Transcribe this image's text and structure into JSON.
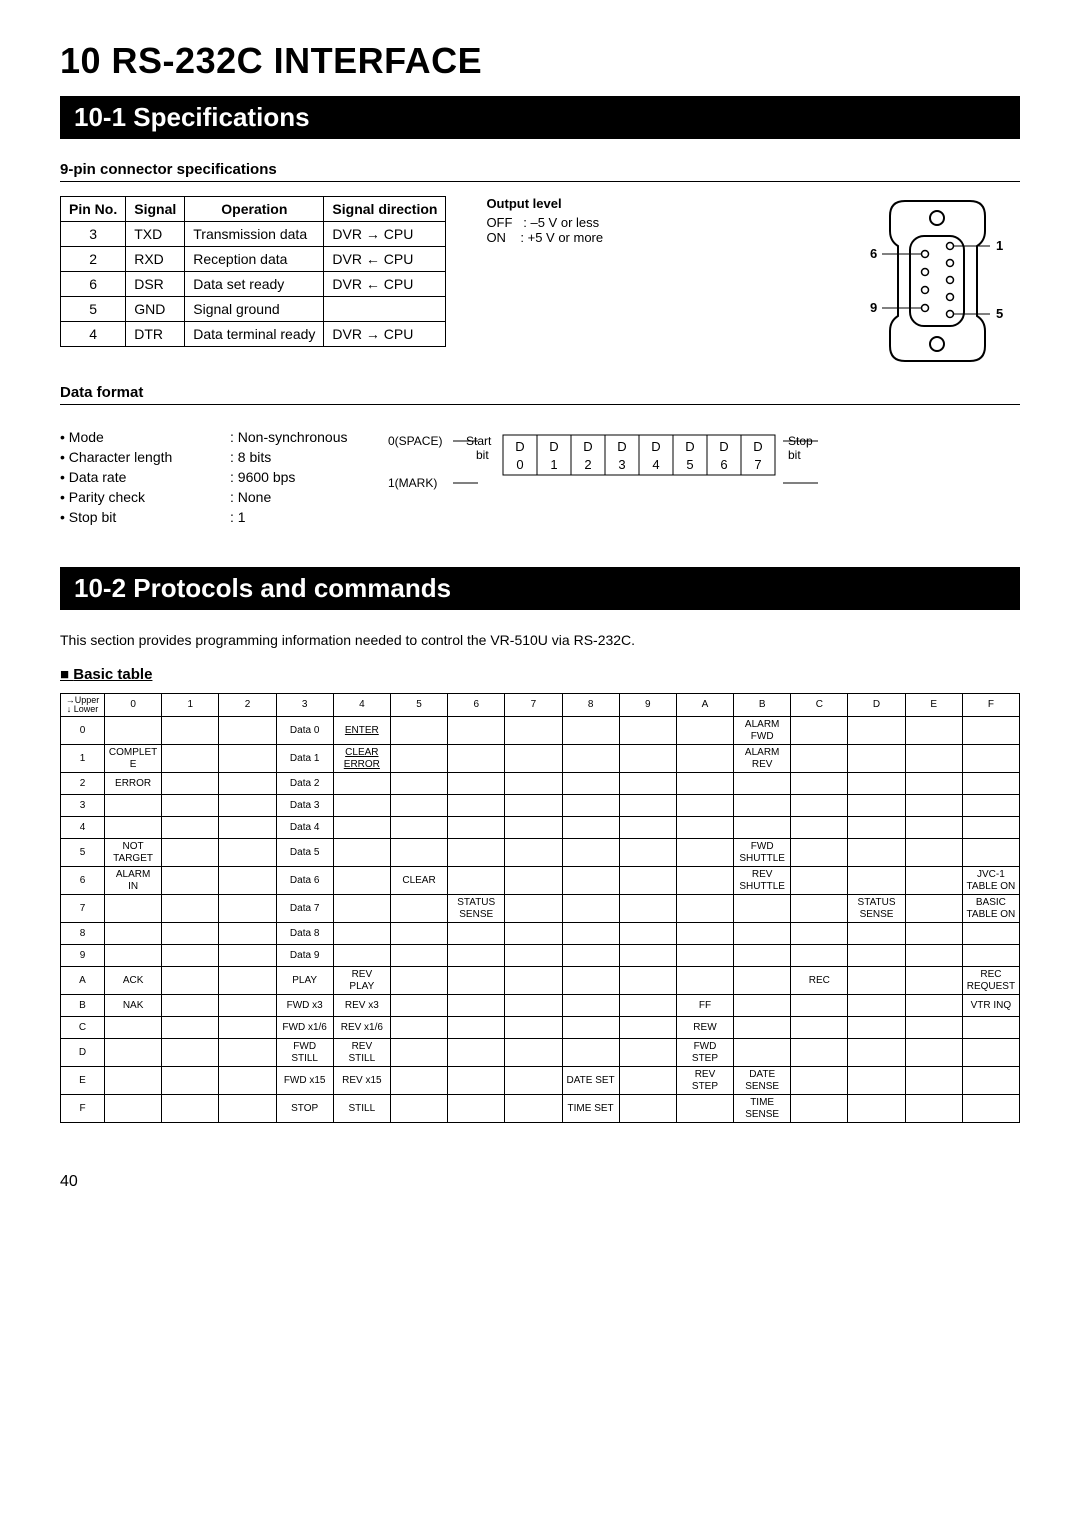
{
  "title": "10 RS-232C INTERFACE",
  "section1": {
    "bar": "10-1 Specifications"
  },
  "pinhdr": "9-pin connector specifications",
  "pinTable": {
    "headers": [
      "Pin No.",
      "Signal",
      "Operation",
      "Signal direction"
    ],
    "rows": [
      {
        "no": "3",
        "sig": "TXD",
        "op": "Transmission data",
        "dir": "DVR → CPU"
      },
      {
        "no": "2",
        "sig": "RXD",
        "op": "Reception data",
        "dir": "DVR ← CPU"
      },
      {
        "no": "6",
        "sig": "DSR",
        "op": "Data set ready",
        "dir": "DVR ← CPU"
      },
      {
        "no": "5",
        "sig": "GND",
        "op": "Signal ground",
        "dir": ""
      },
      {
        "no": "4",
        "sig": "DTR",
        "op": "Data terminal ready",
        "dir": "DVR → CPU"
      }
    ]
  },
  "output": {
    "title": "Output level",
    "off": "OFF   : –5 V or less",
    "on": "ON    : +5 V or more"
  },
  "connector": {
    "labels": {
      "p1": "1",
      "p5": "5",
      "p6": "6",
      "p9": "9"
    }
  },
  "datafmt_hdr": "Data format",
  "datafmt": [
    {
      "l": "• Mode",
      "v": "Non-synchronous"
    },
    {
      "l": "• Character length",
      "v": "8 bits"
    },
    {
      "l": "• Data rate",
      "v": "9600 bps"
    },
    {
      "l": "• Parity check",
      "v": "None"
    },
    {
      "l": "• Stop bit",
      "v": "1"
    }
  ],
  "timing": {
    "space": "0(SPACE)",
    "mark": "1(MARK)",
    "start": "Start\nbit",
    "stop": "Stop\nbit",
    "bits": [
      "D\n0",
      "D\n1",
      "D\n2",
      "D\n3",
      "D\n4",
      "D\n5",
      "D\n6",
      "D\n7"
    ]
  },
  "section2": {
    "bar": "10-2 Protocols and commands",
    "desc": "This section provides programming information needed to control the VR-510U via RS-232C.",
    "tblhdr": "Basic table"
  },
  "basic": {
    "corner_upper": "→Upper",
    "corner_lower": "↓ Lower",
    "cols": [
      "0",
      "1",
      "2",
      "3",
      "4",
      "5",
      "6",
      "7",
      "8",
      "9",
      "A",
      "B",
      "C",
      "D",
      "E",
      "F"
    ],
    "rows": [
      "0",
      "1",
      "2",
      "3",
      "4",
      "5",
      "6",
      "7",
      "8",
      "9",
      "A",
      "B",
      "C",
      "D",
      "E",
      "F"
    ],
    "cells": {
      "0": {
        "3": "Data 0",
        "4": "ENTER",
        "B": "ALARM\nFWD"
      },
      "1": {
        "0": "COMPLETE",
        "3": "Data 1",
        "4": "CLEAR\nERROR",
        "B": "ALARM\nREV"
      },
      "2": {
        "0": "ERROR",
        "3": "Data 2"
      },
      "3": {
        "3": "Data 3"
      },
      "4": {
        "3": "Data 4"
      },
      "5": {
        "0": "NOT\nTARGET",
        "3": "Data 5",
        "B": "FWD\nSHUTTLE"
      },
      "6": {
        "0": "ALARM\nIN",
        "3": "Data 6",
        "5": "CLEAR",
        "B": "REV\nSHUTTLE",
        "F": "JVC-1\nTABLE ON"
      },
      "7": {
        "3": "Data 7",
        "6": "STATUS\nSENSE",
        "D": "STATUS\nSENSE",
        "F": "BASIC\nTABLE ON"
      },
      "8": {
        "3": "Data 8"
      },
      "9": {
        "3": "Data 9"
      },
      "A": {
        "0": "ACK",
        "3": "PLAY",
        "4": "REV\nPLAY",
        "C": "REC",
        "F": "REC\nREQUEST"
      },
      "B": {
        "0": "NAK",
        "3": "FWD x3",
        "4": "REV x3",
        "A": "FF",
        "F": "VTR INQ"
      },
      "C": {
        "3": "FWD x1/6",
        "4": "REV x1/6",
        "A": "REW"
      },
      "D": {
        "3": "FWD\nSTILL",
        "4": "REV\nSTILL",
        "A": "FWD\nSTEP"
      },
      "E": {
        "3": "FWD x15",
        "4": "REV x15",
        "8": "DATE SET",
        "A": "REV\nSTEP",
        "B": "DATE\nSENSE"
      },
      "F": {
        "3": "STOP",
        "4": "STILL",
        "8": "TIME SET",
        "B": "TIME\nSENSE"
      }
    },
    "underlined": [
      "0.4",
      "1.4"
    ]
  },
  "pagenum": "40"
}
